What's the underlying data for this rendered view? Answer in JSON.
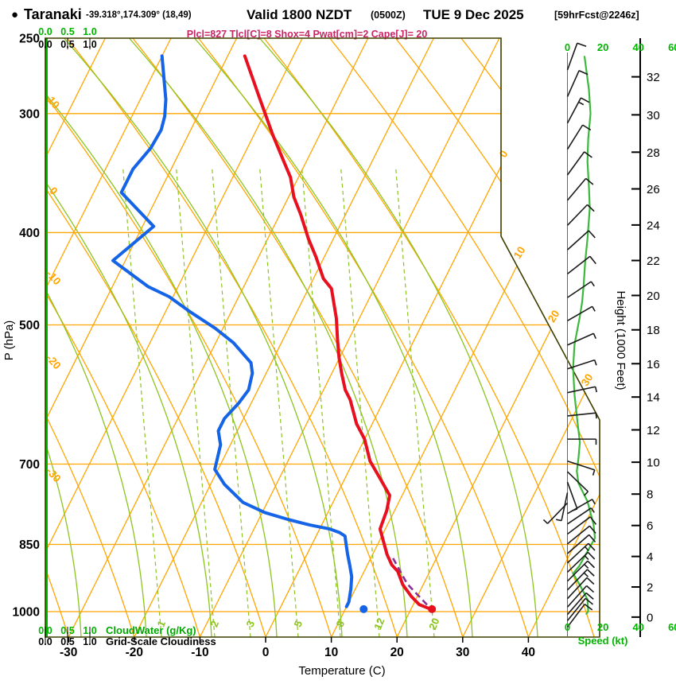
{
  "header": {
    "bullet": "●",
    "station": "Taranaki",
    "coords": "-39.318°,174.309° (18,49)",
    "valid": "Valid 1800 NZDT",
    "zulu": "(0500Z)",
    "date": "TUE 9 Dec 2025",
    "fcst": "[59hrFcst@2246z]"
  },
  "params_line": "Plcl=827 Tlcl[C]=8 Shox=4 Pwat[cm]=2 Cape[J]= 20",
  "colors": {
    "grid_orange": "#FFA500",
    "moist_green": "#8CC41E",
    "bright_green": "#00B400",
    "speed_green": "#3CB83C",
    "temp_red": "#E80F1F",
    "dew_blue": "#1563E6",
    "parcel_purple": "#8A2F96",
    "param_magenta": "#CC2266",
    "border_olive": "#3D3D00",
    "barb_black": "#1A1A1A"
  },
  "axes": {
    "pressure": {
      "title": "P (hPa)",
      "ticks": [
        250,
        300,
        400,
        500,
        700,
        850,
        1000
      ]
    },
    "temperature": {
      "title": "Temperature (C)",
      "ticks": [
        -30,
        -20,
        -10,
        0,
        10,
        20,
        30,
        40
      ]
    },
    "height": {
      "title": "Height (1000 Feet)",
      "ticks": [
        32,
        30,
        28,
        26,
        24,
        22,
        20,
        18,
        16,
        14,
        12,
        10,
        8,
        6,
        4,
        2,
        0
      ]
    },
    "speed": {
      "title": "Speed (kt)",
      "ticks": [
        0,
        20,
        40,
        60
      ]
    },
    "cloudwater": {
      "title": "CloudWater (g/Kg)",
      "labels": [
        "0.0",
        "0.5",
        "1.0"
      ]
    },
    "gridscale": {
      "title": "Grid-Scale Cloudiness",
      "labels": [
        "0.0",
        "0.5",
        "1.0"
      ]
    }
  },
  "grid_labels": {
    "isotherm_right": [
      "0",
      "10",
      "20",
      "30"
    ],
    "dry_adiabat_left": [
      "10",
      "0",
      "-10",
      "-20",
      "-30"
    ],
    "mixing_ratio": [
      "1",
      "2",
      "3",
      "5",
      "8",
      "12",
      "20"
    ]
  },
  "chart_data": {
    "type": "skew-t log-p sounding",
    "pressure_range_hpa": [
      250,
      1050
    ],
    "temp_axis_range_c": [
      -35,
      45
    ],
    "skew": "isotherms tilt right with height",
    "temperature_profile": [
      [
        261,
        -47.4
      ],
      [
        286,
        -42.5
      ],
      [
        316,
        -37.1
      ],
      [
        337,
        -33.4
      ],
      [
        350,
        -31.2
      ],
      [
        367,
        -29.2
      ],
      [
        383,
        -26.8
      ],
      [
        406,
        -23.8
      ],
      [
        424,
        -21.3
      ],
      [
        447,
        -18.5
      ],
      [
        458,
        -16.5
      ],
      [
        492,
        -13.5
      ],
      [
        518,
        -11.7
      ],
      [
        541,
        -10.1
      ],
      [
        562,
        -8.5
      ],
      [
        585,
        -6.7
      ],
      [
        599,
        -5.2
      ],
      [
        635,
        -2.4
      ],
      [
        659,
        0.0
      ],
      [
        695,
        2.5
      ],
      [
        722,
        5.1
      ],
      [
        755,
        8.1
      ],
      [
        783,
        8.8
      ],
      [
        819,
        9.2
      ],
      [
        843,
        10.6
      ],
      [
        871,
        12.2
      ],
      [
        893,
        13.7
      ],
      [
        907,
        15.1
      ],
      [
        937,
        16.9
      ],
      [
        964,
        19.1
      ],
      [
        983,
        20.9
      ],
      [
        992,
        22.6
      ]
    ],
    "dewpoint_profile": [
      [
        261,
        -60.0
      ],
      [
        290,
        -56.1
      ],
      [
        302,
        -55.0
      ],
      [
        312,
        -54.5
      ],
      [
        326,
        -54.7
      ],
      [
        343,
        -55.8
      ],
      [
        363,
        -55.8
      ],
      [
        394,
        -48.3
      ],
      [
        428,
        -51.9
      ],
      [
        456,
        -44.5
      ],
      [
        467,
        -40.6
      ],
      [
        485,
        -36.1
      ],
      [
        504,
        -31.2
      ],
      [
        522,
        -27.3
      ],
      [
        538,
        -24.7
      ],
      [
        548,
        -23.1
      ],
      [
        562,
        -22.1
      ],
      [
        585,
        -21.4
      ],
      [
        604,
        -21.9
      ],
      [
        627,
        -22.9
      ],
      [
        646,
        -22.9
      ],
      [
        668,
        -21.5
      ],
      [
        709,
        -20.5
      ],
      [
        735,
        -17.9
      ],
      [
        768,
        -13.7
      ],
      [
        787,
        -9.6
      ],
      [
        800,
        -5.6
      ],
      [
        811,
        -1.8
      ],
      [
        819,
        1.6
      ],
      [
        826,
        3.3
      ],
      [
        833,
        4.4
      ],
      [
        850,
        5.2
      ],
      [
        871,
        6.2
      ],
      [
        893,
        7.3
      ],
      [
        919,
        8.5
      ],
      [
        946,
        9.3
      ],
      [
        977,
        10.0
      ],
      [
        988,
        10.0
      ]
    ],
    "parcel_path": [
      [
        879,
        13.4
      ],
      [
        935,
        17.5
      ],
      [
        992,
        22.9
      ]
    ],
    "surface_markers": {
      "temp_dot_c": 23.2,
      "dew_dot_c": 12.8,
      "pressure_hpa": 994
    },
    "wind_speed_profile_kt": [
      [
        261,
        9.6
      ],
      [
        283,
        12.1
      ],
      [
        300,
        13.0
      ],
      [
        319,
        11.7
      ],
      [
        337,
        11.3
      ],
      [
        358,
        12.1
      ],
      [
        377,
        12.6
      ],
      [
        406,
        11.3
      ],
      [
        429,
        10.0
      ],
      [
        455,
        9.1
      ],
      [
        473,
        8.3
      ],
      [
        490,
        7.0
      ],
      [
        524,
        4.0
      ],
      [
        555,
        3.2
      ],
      [
        592,
        4.0
      ],
      [
        633,
        5.7
      ],
      [
        664,
        7.0
      ],
      [
        691,
        6.2
      ],
      [
        712,
        5.3
      ],
      [
        733,
        6.2
      ],
      [
        766,
        11.3
      ],
      [
        810,
        14.7
      ],
      [
        837,
        15.5
      ],
      [
        896,
        6.6
      ],
      [
        912,
        3.2
      ],
      [
        938,
        7.0
      ],
      [
        971,
        11.3
      ],
      [
        999,
        11.7
      ],
      [
        1007,
        10.5
      ]
    ],
    "wind_barbs": [
      [
        270,
        340,
        12
      ],
      [
        288,
        336,
        12
      ],
      [
        307,
        332,
        13
      ],
      [
        327,
        328,
        12
      ],
      [
        348,
        324,
        11
      ],
      [
        370,
        320,
        12
      ],
      [
        393,
        316,
        12
      ],
      [
        417,
        312,
        11
      ],
      [
        442,
        308,
        10
      ],
      [
        468,
        304,
        9
      ],
      [
        495,
        300,
        8
      ],
      [
        525,
        294,
        6
      ],
      [
        556,
        288,
        5
      ],
      [
        589,
        282,
        4
      ],
      [
        623,
        276,
        4
      ],
      [
        659,
        270,
        5
      ],
      [
        695,
        252,
        5
      ],
      [
        713,
        226,
        6
      ],
      [
        731,
        200,
        6
      ],
      [
        750,
        168,
        7
      ],
      [
        769,
        136,
        8
      ],
      [
        789,
        300,
        8
      ],
      [
        809,
        304,
        9
      ],
      [
        829,
        307,
        10
      ],
      [
        849,
        309,
        11
      ],
      [
        869,
        311,
        12
      ],
      [
        889,
        313,
        13
      ],
      [
        909,
        314,
        14
      ],
      [
        929,
        315,
        14
      ],
      [
        949,
        316,
        13
      ],
      [
        969,
        317,
        12
      ],
      [
        989,
        318,
        11
      ],
      [
        1007,
        319,
        10
      ],
      [
        1022,
        321,
        10
      ],
      [
        1038,
        323,
        10
      ]
    ],
    "mixing_ratio_lines_gkg": [
      1,
      2,
      3,
      5,
      8,
      12,
      20
    ],
    "cloudwater_profile": "zero at all levels (vertical green line at 0.0)"
  }
}
